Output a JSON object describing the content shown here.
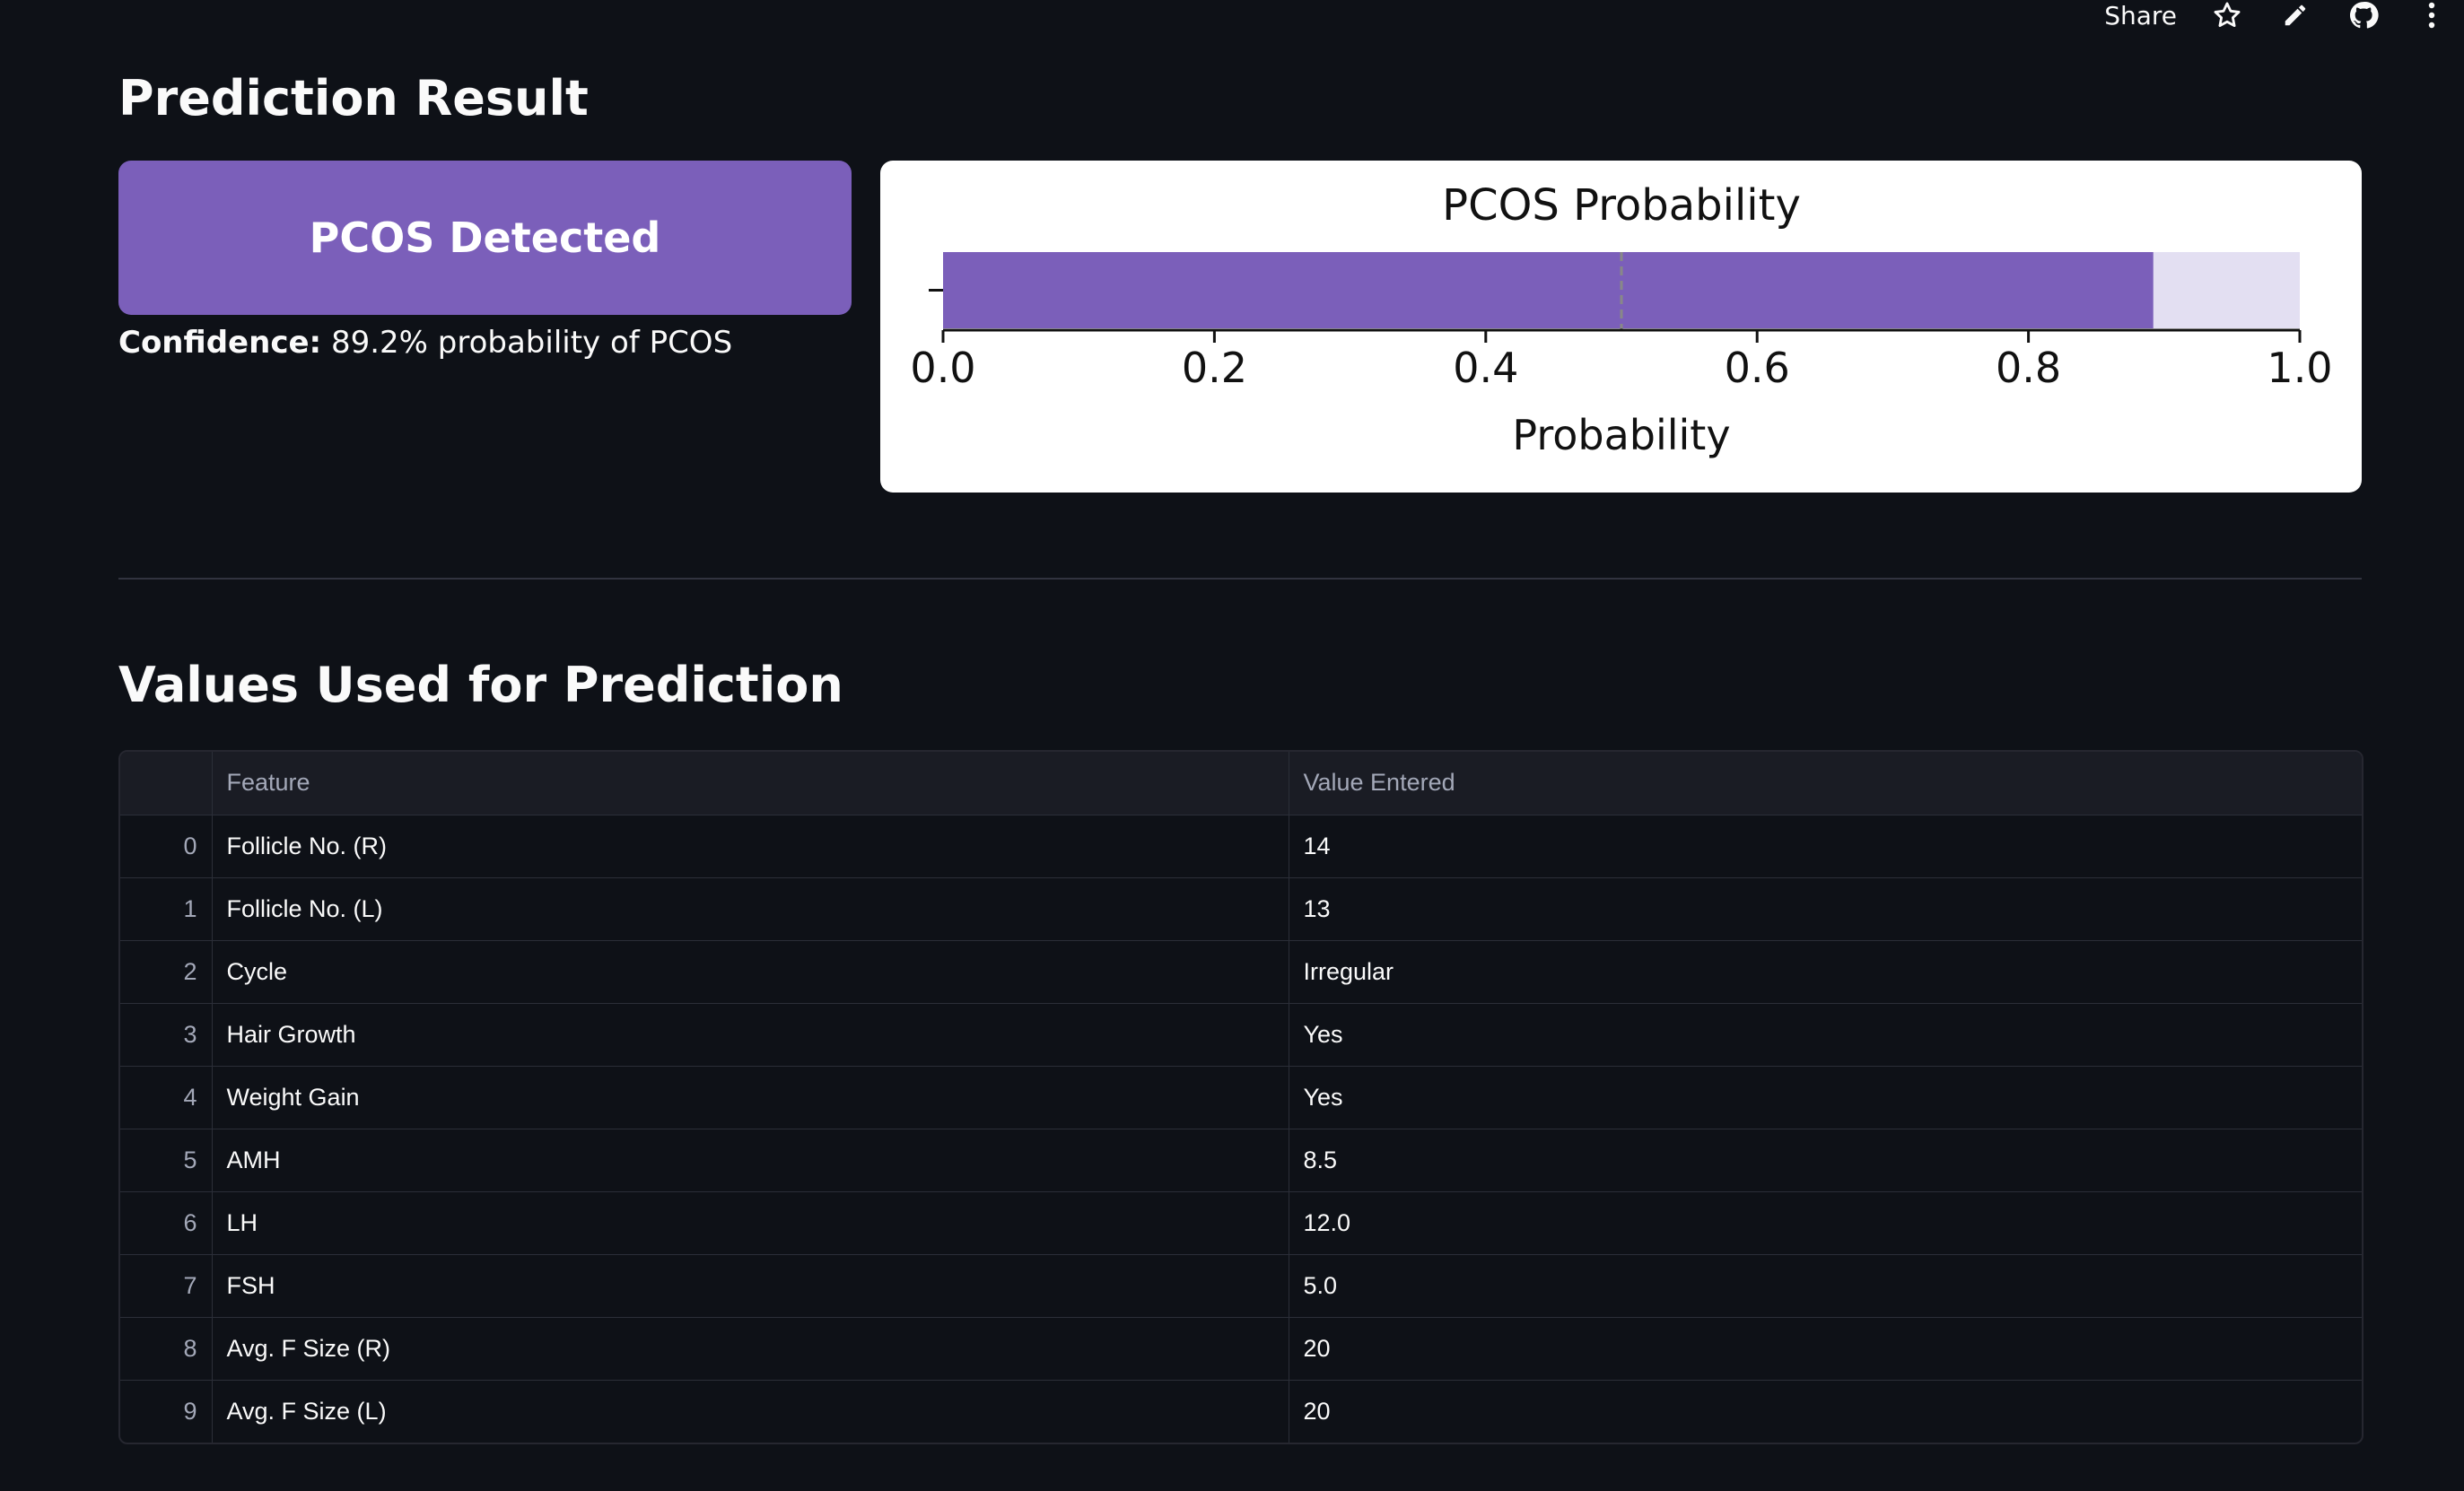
{
  "toolbar": {
    "share_label": "Share",
    "icons": [
      "star-icon",
      "pencil-icon",
      "github-icon",
      "more-vertical-icon"
    ]
  },
  "result": {
    "heading": "Prediction Result",
    "status": "PCOS Detected",
    "confidence_label": "Confidence:",
    "confidence_text": "89.2% probability of PCOS",
    "accent_color": "#7b5fba"
  },
  "chart_data": {
    "type": "bar",
    "orientation": "horizontal",
    "title": "PCOS Probability",
    "xlabel": "Probability",
    "xlim": [
      0,
      1
    ],
    "xticks": [
      "0.0",
      "0.2",
      "0.4",
      "0.6",
      "0.8",
      "1.0"
    ],
    "values": [
      0.892
    ],
    "threshold": 0.5,
    "bar_color": "#7b5fba",
    "background_bar_color": "#e3dff2"
  },
  "values_section": {
    "heading": "Values Used for Prediction",
    "columns": [
      "",
      "Feature",
      "Value Entered"
    ],
    "rows": [
      {
        "index": "0",
        "feature": "Follicle No. (R)",
        "value": "14"
      },
      {
        "index": "1",
        "feature": "Follicle No. (L)",
        "value": "13"
      },
      {
        "index": "2",
        "feature": "Cycle",
        "value": "Irregular"
      },
      {
        "index": "3",
        "feature": "Hair Growth",
        "value": "Yes"
      },
      {
        "index": "4",
        "feature": "Weight Gain",
        "value": "Yes"
      },
      {
        "index": "5",
        "feature": "AMH",
        "value": "8.5"
      },
      {
        "index": "6",
        "feature": "LH",
        "value": "12.0"
      },
      {
        "index": "7",
        "feature": "FSH",
        "value": "5.0"
      },
      {
        "index": "8",
        "feature": "Avg. F Size (R)",
        "value": "20"
      },
      {
        "index": "9",
        "feature": "Avg. F Size (L)",
        "value": "20"
      }
    ]
  }
}
